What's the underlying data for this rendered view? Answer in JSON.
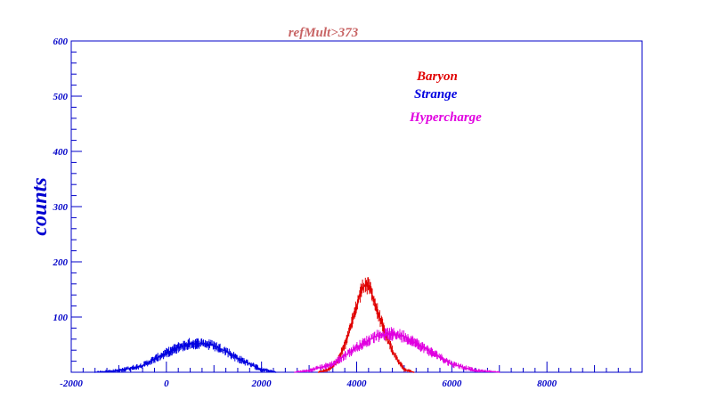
{
  "chart_data": {
    "type": "line",
    "title": "refMult>373",
    "xlabel": "",
    "ylabel": "counts",
    "xlim": [
      -2000,
      10000
    ],
    "ylim": [
      0,
      600
    ],
    "x_ticks": [
      "-2000",
      "0",
      "2000",
      "4000",
      "6000",
      "8000"
    ],
    "y_ticks": [
      "100",
      "200",
      "300",
      "400",
      "500",
      "600"
    ],
    "legend_position": "top-right",
    "series": [
      {
        "name": "Baryon",
        "color": "#e00000",
        "x": [
          3200,
          3400,
          3600,
          3800,
          4000,
          4100,
          4200,
          4300,
          4400,
          4600,
          4800,
          5000,
          5200
        ],
        "values": [
          0,
          5,
          20,
          60,
          120,
          150,
          160,
          148,
          120,
          70,
          30,
          5,
          0
        ]
      },
      {
        "name": "Strange",
        "color": "#0000e0",
        "x": [
          -1500,
          -1000,
          -500,
          0,
          250,
          500,
          750,
          1000,
          1250,
          1500,
          2000,
          2300
        ],
        "values": [
          0,
          3,
          12,
          35,
          45,
          52,
          52,
          48,
          38,
          25,
          5,
          0
        ]
      },
      {
        "name": "Hypercharge",
        "color": "#e000e0",
        "x": [
          2700,
          3000,
          3500,
          4000,
          4400,
          4700,
          5000,
          5500,
          6000,
          6500,
          7000
        ],
        "values": [
          0,
          3,
          15,
          45,
          65,
          70,
          65,
          40,
          15,
          3,
          0
        ]
      }
    ]
  }
}
